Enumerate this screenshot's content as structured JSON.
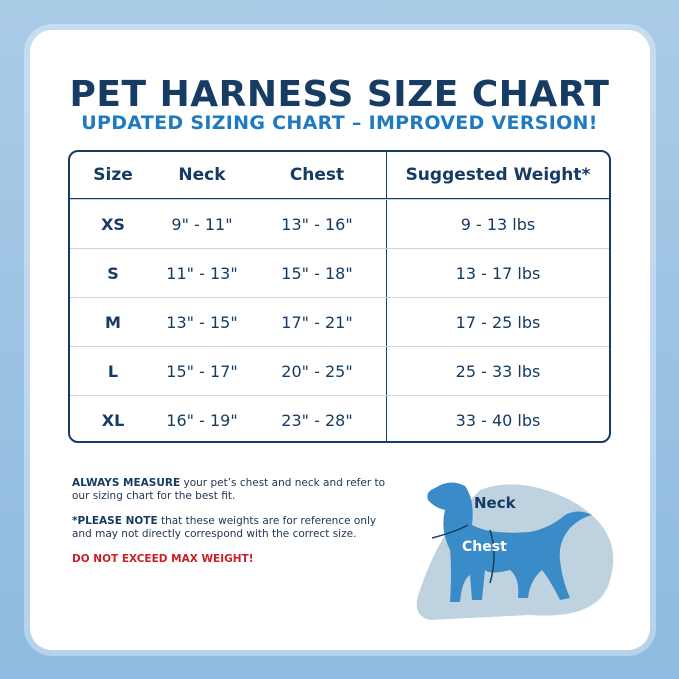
{
  "title": "PET HARNESS SIZE CHART",
  "subtitle": "UPDATED SIZING CHART – IMPROVED VERSION!",
  "table": {
    "headers": [
      "Size",
      "Neck",
      "Chest",
      "Suggested Weight*"
    ],
    "rows": [
      [
        "XS",
        "9\" - 11\"",
        "13\" - 16\"",
        "9 - 13 lbs"
      ],
      [
        "S",
        "11\" - 13\"",
        "15\" - 18\"",
        "13 - 17 lbs"
      ],
      [
        "M",
        "13\" - 15\"",
        "17\" - 21\"",
        "17 - 25 lbs"
      ],
      [
        "L",
        "15\" - 17\"",
        "20\" - 25\"",
        "25 - 33 lbs"
      ],
      [
        "XL",
        "16\" - 19\"",
        "23\" - 28\"",
        "33 - 40 lbs"
      ]
    ]
  },
  "notes": {
    "measure_bold": "ALWAYS MEASURE",
    "measure_text": " your pet’s chest and neck and refer to our sizing chart for the best fit.",
    "note_bold": "*PLEASE NOTE",
    "note_text": " that these weights are for reference only and may not directly correspond with the correct size.",
    "warning": "DO NOT EXCEED MAX WEIGHT!"
  },
  "diagram": {
    "neck_label": "Neck",
    "chest_label": "Chest"
  },
  "colors": {
    "navy": "#163c63",
    "accent": "#1f7ac0",
    "warning": "#c8202a",
    "dog": "#3a8cc8"
  }
}
